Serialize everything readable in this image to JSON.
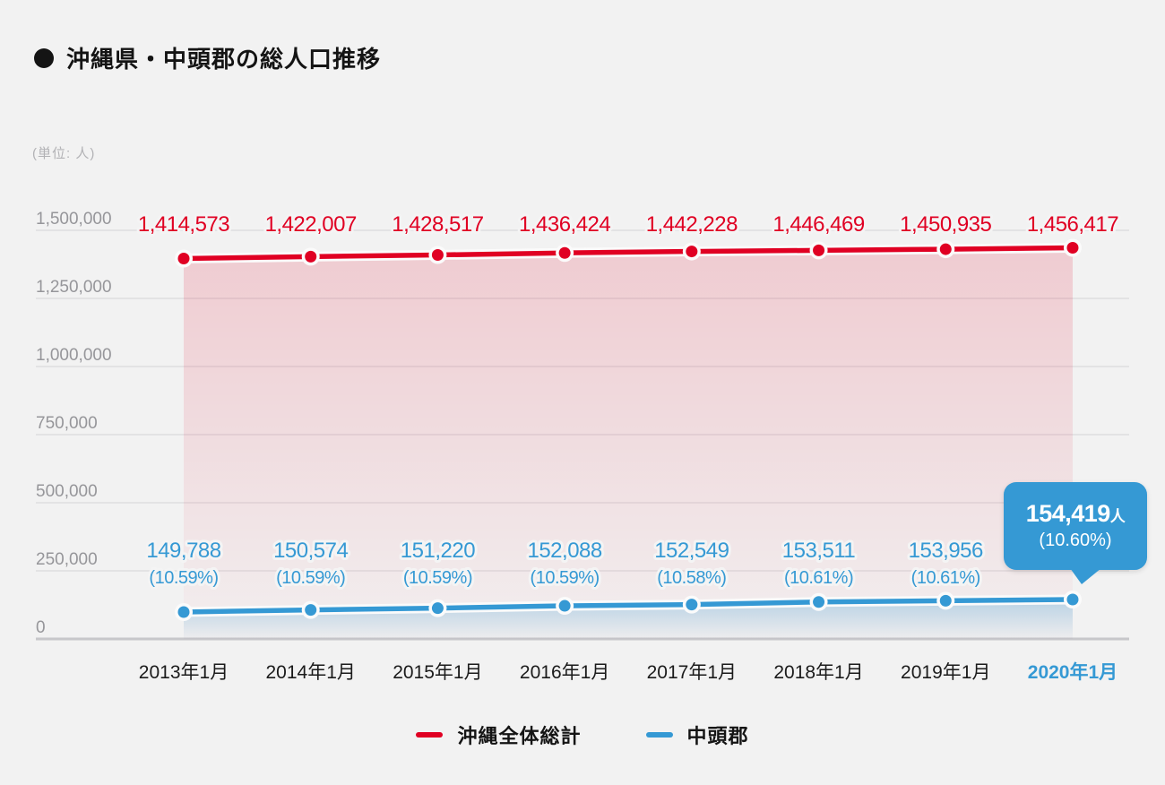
{
  "page": {
    "background": "#F2F2F2"
  },
  "header": {
    "bullet": "●",
    "title": "沖縄県・中頭郡の総人口推移"
  },
  "unit_label": "(単位: 人)",
  "callout": {
    "value": "154,419",
    "unit_suffix": "人",
    "percent": "(10.60%)",
    "color": "#3599D4"
  },
  "legend": [
    {
      "label": "沖縄全体総計",
      "color": "#E00023"
    },
    {
      "label": "中頭郡",
      "color": "#3599D4"
    }
  ],
  "chart_data": {
    "type": "line",
    "title": "沖縄県・中頭郡の総人口推移",
    "unit": "人",
    "grid": true,
    "legend_position": "bottom",
    "ylim": [
      0,
      1500000
    ],
    "y_ticks": [
      1500000,
      1250000,
      1000000,
      750000,
      500000,
      250000,
      0
    ],
    "categories": [
      "2013年1月",
      "2014年1月",
      "2015年1月",
      "2016年1月",
      "2017年1月",
      "2018年1月",
      "2019年1月",
      "2020年1月"
    ],
    "highlighted_category": "2020年1月",
    "series": [
      {
        "key": "okinawa-total",
        "name": "沖縄全体総計",
        "color": "#E00023",
        "values": [
          1414573,
          1422007,
          1428517,
          1436424,
          1442228,
          1446469,
          1450935,
          1456417
        ]
      },
      {
        "key": "nakagami",
        "name": "中頭郡",
        "color": "#3599D4",
        "values": [
          149788,
          150574,
          151220,
          152088,
          152549,
          153511,
          153956,
          154419
        ],
        "percent_labels": [
          "(10.59%)",
          "(10.59%)",
          "(10.59%)",
          "(10.59%)",
          "(10.58%)",
          "(10.61%)",
          "(10.61%)",
          "(10.60%)"
        ]
      }
    ]
  }
}
